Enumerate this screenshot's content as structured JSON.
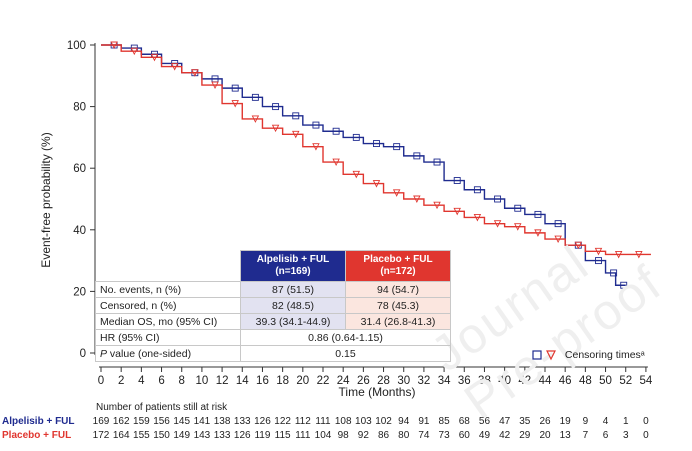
{
  "chart_data": {
    "type": "line",
    "subtype": "kaplan-meier",
    "title": "",
    "xlabel": "Time (Months)",
    "ylabel": "Event-free probability (%)",
    "xlim": [
      0,
      55
    ],
    "ylim": [
      0,
      100
    ],
    "xticks": [
      0,
      2,
      4,
      6,
      8,
      10,
      12,
      14,
      16,
      18,
      20,
      22,
      24,
      26,
      28,
      30,
      32,
      34,
      36,
      38,
      40,
      42,
      44,
      46,
      48,
      50,
      52,
      54
    ],
    "yticks": [
      0,
      20,
      40,
      60,
      80,
      100
    ],
    "series": [
      {
        "name": "Alpelisib + FUL",
        "color": "#1f2b8f",
        "x": [
          0,
          2,
          4,
          6,
          8,
          10,
          12,
          14,
          16,
          18,
          20,
          22,
          24,
          26,
          28,
          30,
          32,
          34,
          36,
          38,
          40,
          42,
          44,
          46,
          48,
          50,
          51,
          52
        ],
        "y": [
          100,
          99,
          97,
          94,
          91,
          89,
          86,
          83,
          80,
          77,
          74,
          72,
          70,
          68,
          67,
          64,
          62,
          56,
          53,
          50,
          47,
          45,
          42,
          35,
          30,
          26,
          22,
          22
        ]
      },
      {
        "name": "Placebo + FUL",
        "color": "#e0362f",
        "x": [
          0,
          2,
          4,
          6,
          8,
          10,
          12,
          14,
          16,
          18,
          20,
          22,
          24,
          26,
          28,
          30,
          32,
          34,
          36,
          38,
          40,
          42,
          44,
          46,
          48,
          50,
          52,
          54
        ],
        "y": [
          100,
          98,
          96,
          93,
          91,
          87,
          81,
          76,
          73,
          71,
          67,
          62,
          58,
          55,
          52,
          50,
          48,
          46,
          44,
          42,
          41,
          39,
          37,
          35,
          33,
          32,
          32,
          32
        ]
      }
    ],
    "legend": "bottom-right",
    "legend_text": "Censoring timesᵃ"
  },
  "table": {
    "headers": [
      "Alpelisib + FUL\n(n=169)",
      "Placebo + FUL\n(n=172)"
    ],
    "rows": [
      {
        "label": "No. events, n (%)",
        "a": "87 (51.5)",
        "b": "94 (54.7)"
      },
      {
        "label": "Censored, n (%)",
        "a": "82 (48.5)",
        "b": "78 (45.3)"
      },
      {
        "label": "Median OS, mo (95% CI)",
        "a": "39.3 (34.1-44.9)",
        "b": "31.4 (26.8-41.3)"
      }
    ],
    "hr_label": "HR (95% CI)",
    "hr_value": "0.86 (0.64-1.15)",
    "p_label_italic": "P",
    "p_label_rest": " value (one-sided)",
    "p_value": "0.15"
  },
  "risk": {
    "title": "Number of patients still at risk",
    "alpelisib_label": "Alpelisib + FUL",
    "placebo_label": "Placebo + FUL",
    "alpelisib": [
      "169",
      "162",
      "159",
      "156",
      "145",
      "141",
      "138",
      "133",
      "126",
      "122",
      "112",
      "111",
      "108",
      "103",
      "102",
      "94",
      "91",
      "85",
      "68",
      "56",
      "47",
      "35",
      "26",
      "19",
      "9",
      "4",
      "1",
      "0"
    ],
    "placebo": [
      "172",
      "164",
      "155",
      "150",
      "149",
      "143",
      "133",
      "126",
      "119",
      "115",
      "111",
      "104",
      "98",
      "92",
      "86",
      "80",
      "74",
      "73",
      "60",
      "49",
      "42",
      "29",
      "20",
      "13",
      "7",
      "6",
      "3",
      "0"
    ]
  },
  "watermark": "Journal Pre-proof"
}
